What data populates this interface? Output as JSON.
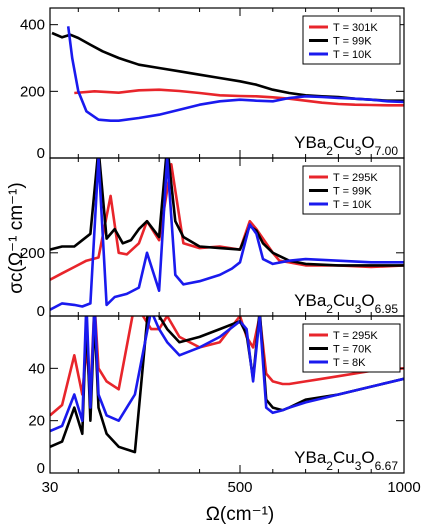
{
  "chart_data": {
    "type": "line",
    "xlabel": "Ω(cm⁻¹)",
    "ylabel": "σc(Ω⁻¹ cm⁻¹)",
    "x_axis": {
      "scale": "piecewise-linear",
      "range": [
        30,
        1000
      ],
      "tick_values": [
        30,
        500,
        1000
      ],
      "tick_labels": [
        "30",
        "500",
        "1000"
      ],
      "minor_ticks": [
        100,
        200,
        300,
        400,
        600,
        700,
        800,
        900
      ]
    },
    "grid": false,
    "panels": [
      {
        "compound": {
          "base": "YBa",
          "sub1": "2",
          "mid": "Cu",
          "sub2": "3",
          "o": "O",
          "sub3": "7.00"
        },
        "ylim": [
          0,
          450
        ],
        "yticks": [
          0,
          200,
          400
        ],
        "ytick_labels": [
          "0",
          "200",
          "400"
        ],
        "legend_placement": "top-right",
        "series": [
          {
            "name": "T = 301K",
            "color": "#e8252b",
            "x": [
              90,
              140,
              200,
              250,
              300,
              350,
              400,
              450,
              500,
              550,
              600,
              650,
              700,
              750,
              800,
              850,
              900,
              950,
              1000
            ],
            "y": [
              195,
              200,
              196,
              203,
              205,
              201,
              195,
              188,
              186,
              185,
              182,
              178,
              172,
              166,
              162,
              160,
              159,
              158,
              158
            ]
          },
          {
            "name": "T = 99K",
            "color": "#000000",
            "x": [
              35,
              60,
              80,
              100,
              130,
              160,
              200,
              250,
              300,
              350,
              400,
              450,
              500,
              550,
              600,
              650,
              700,
              750,
              800,
              850,
              900,
              950,
              1000
            ],
            "y": [
              375,
              362,
              370,
              360,
              340,
              320,
              300,
              280,
              270,
              260,
              250,
              240,
              230,
              220,
              205,
              195,
              188,
              185,
              183,
              178,
              175,
              172,
              172
            ]
          },
          {
            "name": "T = 10K",
            "color": "#1a1aee",
            "x": [
              75,
              85,
              100,
              120,
              150,
              180,
              200,
              250,
              300,
              350,
              400,
              450,
              500,
              550,
              600,
              650,
              700,
              750,
              800,
              850,
              900,
              950,
              1000
            ],
            "y": [
              395,
              300,
              200,
              140,
              115,
              112,
              112,
              120,
              130,
              145,
              160,
              170,
              175,
              172,
              170,
              180,
              185,
              183,
              180,
              178,
              175,
              170,
              168
            ]
          }
        ]
      },
      {
        "compound": {
          "base": "YBa",
          "sub1": "2",
          "mid": "Cu",
          "sub2": "3",
          "o": "O",
          "sub3": "6.95"
        },
        "ylim": [
          0,
          500
        ],
        "yticks": [
          0,
          200
        ],
        "ytick_labels": [
          "0",
          "200"
        ],
        "legend_placement": "top-right",
        "series": [
          {
            "name": "T = 295K",
            "color": "#e8252b",
            "x": [
              30,
              60,
              90,
              120,
              150,
              180,
              200,
              220,
              250,
              270,
              300,
              330,
              360,
              400,
              450,
              500,
              530,
              550,
              580,
              600,
              620,
              650,
              700,
              800,
              900,
              1000
            ],
            "y": [
              115,
              135,
              155,
              175,
              185,
              380,
              200,
              195,
              230,
              300,
              240,
              480,
              230,
              215,
              220,
              210,
              300,
              275,
              230,
              200,
              175,
              170,
              160,
              160,
              155,
              160
            ],
            "peaks_clipped": true
          },
          {
            "name": "T = 99K",
            "color": "#000000",
            "x": [
              30,
              60,
              90,
              110,
              130,
              150,
              170,
              190,
              210,
              230,
              250,
              270,
              300,
              320,
              340,
              360,
              400,
              450,
              500,
              530,
              550,
              570,
              600,
              650,
              700,
              800,
              900,
              1000
            ],
            "y": [
              210,
              220,
              220,
              240,
              260,
              530,
              245,
              275,
              230,
              240,
              275,
              300,
              250,
              540,
              300,
              250,
              220,
              215,
              210,
              285,
              270,
              230,
              200,
              175,
              165,
              160,
              160,
              160
            ]
          },
          {
            "name": "T = 10K",
            "color": "#1a1aee",
            "x": [
              30,
              60,
              90,
              110,
              130,
              150,
              170,
              190,
              220,
              250,
              270,
              300,
              320,
              340,
              360,
              400,
              450,
              480,
              500,
              530,
              550,
              570,
              600,
              650,
              700,
              800,
              900,
              1000
            ],
            "y": [
              20,
              40,
              35,
              30,
              40,
              500,
              35,
              60,
              70,
              90,
              200,
              80,
              500,
              130,
              100,
              110,
              130,
              150,
              170,
              290,
              260,
              180,
              165,
              175,
              180,
              175,
              170,
              170
            ],
            "peaks_clipped": true
          }
        ]
      },
      {
        "compound": {
          "base": "YBa",
          "sub1": "2",
          "mid": "Cu",
          "sub2": "3",
          "o": "O",
          "sub3": "6.67"
        },
        "ylim": [
          0,
          60
        ],
        "yticks": [
          0,
          20,
          40
        ],
        "ytick_labels": [
          "0",
          "20",
          "40"
        ],
        "legend_placement": "top-right",
        "series": [
          {
            "name": "T = 295K",
            "color": "#e8252b",
            "x": [
              30,
              60,
              90,
              110,
              120,
              130,
              140,
              150,
              170,
              200,
              240,
              280,
              300,
              320,
              350,
              400,
              450,
              500,
              520,
              540,
              560,
              580,
              600,
              630,
              650,
              700,
              800,
              900,
              1000
            ],
            "y": [
              22,
              26,
              45,
              30,
              48,
              30,
              65,
              40,
              35,
              32,
              65,
              55,
              55,
              60,
              52,
              48,
              50,
              60,
              52,
              48,
              60,
              38,
              35,
              34,
              34,
              35,
              37,
              39,
              40
            ]
          },
          {
            "name": "T = 70K",
            "color": "#000000",
            "x": [
              30,
              60,
              90,
              110,
              120,
              130,
              140,
              150,
              170,
              200,
              240,
              280,
              300,
              320,
              350,
              400,
              450,
              500,
              520,
              540,
              560,
              580,
              600,
              630,
              650,
              700,
              800,
              900,
              1000
            ],
            "y": [
              10,
              12,
              25,
              15,
              60,
              20,
              60,
              25,
              15,
              10,
              8,
              75,
              60,
              55,
              50,
              52,
              55,
              58,
              53,
              36,
              62,
              28,
              25,
              24,
              25,
              28,
              30,
              33,
              36
            ]
          },
          {
            "name": "T = 8K",
            "color": "#1a1aee",
            "x": [
              30,
              60,
              90,
              110,
              120,
              130,
              140,
              150,
              170,
              200,
              240,
              280,
              300,
              320,
              350,
              400,
              450,
              500,
              520,
              540,
              560,
              580,
              600,
              630,
              650,
              700,
              800,
              900,
              1000
            ],
            "y": [
              16,
              18,
              30,
              20,
              65,
              25,
              65,
              30,
              22,
              20,
              30,
              62,
              55,
              50,
              45,
              48,
              52,
              58,
              55,
              35,
              60,
              25,
              23,
              24,
              25,
              27,
              30,
              33,
              36
            ]
          }
        ]
      }
    ]
  }
}
